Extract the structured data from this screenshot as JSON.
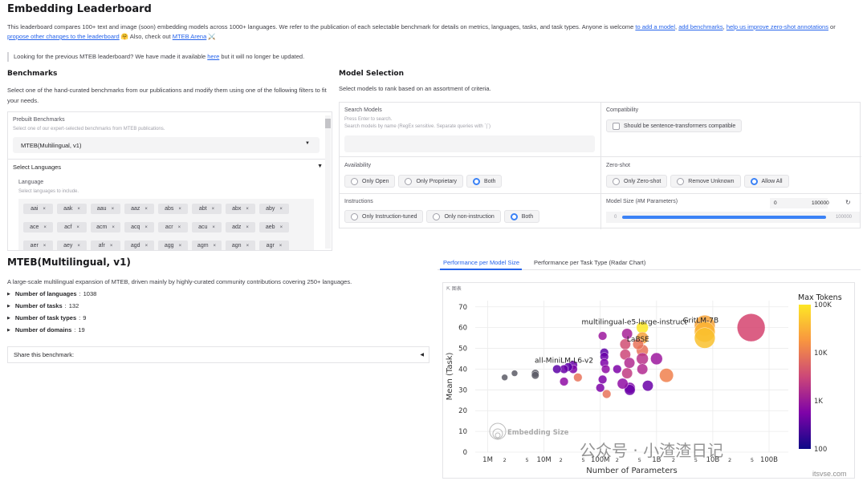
{
  "title": "Embedding Leaderboard",
  "intro": {
    "text1": "This leaderboard compares 100+ text and image (soon) embedding models across 1000+ languages. We refer to the publication of each selectable benchmark for details on metrics, languages, tasks, and task types. Anyone is welcome ",
    "link_add_model": "to add a model",
    "sep1": ", ",
    "link_add_benchmarks": "add benchmarks",
    "sep2": ", ",
    "link_zero_shot": "help us improve zero-shot annotations",
    "sep3": " or ",
    "link_propose": "propose other changes to the leaderboard",
    "text2": " 🤗 Also, check out ",
    "link_arena": "MTEB Arena",
    "text3": " ⚔️"
  },
  "notice": {
    "text1": "Looking for the previous MTEB leaderboard? We have made it available ",
    "link": "here",
    "text2": " but it will no longer be updated."
  },
  "benchmarks": {
    "heading": "Benchmarks",
    "desc": "Select one of the hand-curated benchmarks from our publications and modify them using one of the following filters to fit your needs.",
    "prebuilt_label": "Prebuilt Benchmarks",
    "prebuilt_hint": "Select one of our expert-selected benchmarks from MTEB publications.",
    "prebuilt_value": "MTEB(Multilingual, v1)",
    "select_languages": "Select Languages",
    "language_label": "Language",
    "language_hint": "Select languages to include.",
    "languages": [
      "aai",
      "aak",
      "aau",
      "aaz",
      "abs",
      "abt",
      "abx",
      "aby",
      "ace",
      "acf",
      "acm",
      "acq",
      "acr",
      "acu",
      "adz",
      "aeb",
      "aer",
      "aey",
      "afr",
      "agd",
      "agg",
      "agm",
      "agn",
      "agr"
    ]
  },
  "model_selection": {
    "heading": "Model Selection",
    "desc": "Select models to rank based on an assortment of criteria.",
    "search_label": "Search Models",
    "search_hint1": "Press Enter to search.",
    "search_hint2": "Search models by name (RegEx sensitive. Separate queries with `|`)",
    "compat_label": "Compatibility",
    "compat_option": "Should be sentence-transformers compatible",
    "availability_label": "Availability",
    "availability_options": [
      "Only Open",
      "Only Proprietary",
      "Both"
    ],
    "zero_shot_label": "Zero-shot",
    "zero_shot_options": [
      "Only Zero-shot",
      "Remove Unknown",
      "Allow All"
    ],
    "instructions_label": "Instructions",
    "instructions_options": [
      "Only Instruction-tuned",
      "Only non-instruction",
      "Both"
    ],
    "model_size_label": "Model Size (#M Parameters)",
    "model_size_min": "0",
    "model_size_max": "100000",
    "slider_min": "0",
    "slider_max": "100000"
  },
  "benchmark_info": {
    "title": "MTEB(Multilingual, v1)",
    "desc": "A large-scale multilingual expansion of MTEB, driven mainly by highly-curated community contributions covering 250+ languages.",
    "stats": [
      {
        "label": "Number of languages",
        "value": "1038"
      },
      {
        "label": "Number of tasks",
        "value": "132"
      },
      {
        "label": "Number of task types",
        "value": "9"
      },
      {
        "label": "Number of domains",
        "value": "19"
      }
    ],
    "share": "Share this benchmark:"
  },
  "tabs": [
    "Performance per Model Size",
    "Performance per Task Type (Radar Chart)"
  ],
  "chart_toolbar": "图表",
  "watermark": {
    "text": "公众号 · 小渣渣日记",
    "site": "itsvse.com"
  },
  "chart_data": {
    "type": "scatter",
    "xlabel": "Number of Parameters",
    "ylabel": "Mean (Task)",
    "x_scale": "log",
    "xlim": [
      600000,
      220000000000
    ],
    "ylim": [
      0,
      73
    ],
    "y_ticks": [
      0,
      10,
      20,
      30,
      40,
      50,
      60,
      70
    ],
    "x_ticks": [
      {
        "v": 1000000,
        "label": "1M"
      },
      {
        "v": 2000000,
        "label": "2"
      },
      {
        "v": 5000000,
        "label": "5"
      },
      {
        "v": 10000000,
        "label": "10M"
      },
      {
        "v": 20000000,
        "label": "2"
      },
      {
        "v": 50000000,
        "label": "5"
      },
      {
        "v": 100000000,
        "label": "100M"
      },
      {
        "v": 200000000,
        "label": "2"
      },
      {
        "v": 500000000,
        "label": "5"
      },
      {
        "v": 1000000000,
        "label": "1B"
      },
      {
        "v": 2000000000,
        "label": "2"
      },
      {
        "v": 5000000000,
        "label": "5"
      },
      {
        "v": 10000000000,
        "label": "10B"
      },
      {
        "v": 20000000000,
        "label": "2"
      },
      {
        "v": 50000000000,
        "label": "5"
      },
      {
        "v": 100000000000,
        "label": "100B"
      }
    ],
    "color_scale": {
      "title": "Max Tokens",
      "ticks": [
        "100K",
        "10K",
        "1K",
        "100"
      ],
      "colors": [
        "#fde725",
        "#f89540",
        "#cc4778",
        "#7e03a8",
        "#0d0887"
      ]
    },
    "size_legend": "Embedding Size",
    "annotations": [
      {
        "text": "multilingual-e5-large-instruct",
        "x": 560000000,
        "y": 60.9
      },
      {
        "text": "GritLM-7B",
        "x": 7200000000,
        "y": 60.9
      },
      {
        "text": "LaBSE",
        "x": 471000000,
        "y": 52.1
      },
      {
        "text": "all-MiniLM-L6-v2",
        "x": 22700000,
        "y": 41.9
      }
    ],
    "points": [
      {
        "x": 560000000,
        "y": 60,
        "size": 1024,
        "color": "#fde725"
      },
      {
        "x": 7200000000,
        "y": 61,
        "size": 4096,
        "color": "#f5a23a"
      },
      {
        "x": 7200000000,
        "y": 58,
        "size": 4096,
        "color": "#fbb432"
      },
      {
        "x": 7200000000,
        "y": 55,
        "size": 4096,
        "color": "#f9c12e"
      },
      {
        "x": 48000000000,
        "y": 60,
        "size": 8192,
        "color": "#d5436f"
      },
      {
        "x": 1500000000,
        "y": 37,
        "size": 1536,
        "color": "#f0804d"
      },
      {
        "x": 471000000,
        "y": 52,
        "size": 768,
        "color": "#e8735a"
      },
      {
        "x": 560000000,
        "y": 55,
        "size": 1024,
        "color": "#f6a13d"
      },
      {
        "x": 560000000,
        "y": 49,
        "size": 1024,
        "color": "#e67258"
      },
      {
        "x": 560000000,
        "y": 45,
        "size": 1024,
        "color": "#b83289"
      },
      {
        "x": 278000000,
        "y": 52,
        "size": 768,
        "color": "#d04d73"
      },
      {
        "x": 278000000,
        "y": 47,
        "size": 768,
        "color": "#cc4778"
      },
      {
        "x": 118000000,
        "y": 48,
        "size": 384,
        "color": "#5c01a6"
      },
      {
        "x": 118000000,
        "y": 46,
        "size": 384,
        "color": "#6a00a8"
      },
      {
        "x": 118000000,
        "y": 43,
        "size": 384,
        "color": "#7e03a8"
      },
      {
        "x": 125000000,
        "y": 40,
        "size": 384,
        "color": "#8f0da4"
      },
      {
        "x": 110000000,
        "y": 35,
        "size": 384,
        "color": "#7e03a8"
      },
      {
        "x": 100000000,
        "y": 31,
        "size": 384,
        "color": "#7e03a8"
      },
      {
        "x": 110000000,
        "y": 56,
        "size": 384,
        "color": "#9c179e"
      },
      {
        "x": 300000000,
        "y": 57,
        "size": 768,
        "color": "#a72197"
      },
      {
        "x": 330000000,
        "y": 43,
        "size": 768,
        "color": "#b12a90"
      },
      {
        "x": 300000000,
        "y": 38,
        "size": 768,
        "color": "#c13b82"
      },
      {
        "x": 335000000,
        "y": 31,
        "size": 768,
        "color": "#7e03a8"
      },
      {
        "x": 335000000,
        "y": 30,
        "size": 768,
        "color": "#6a00a8"
      },
      {
        "x": 130000000,
        "y": 28,
        "size": 384,
        "color": "#e8735a"
      },
      {
        "x": 1000000000,
        "y": 45,
        "size": 1024,
        "color": "#9c179e"
      },
      {
        "x": 560000000,
        "y": 40,
        "size": 768,
        "color": "#b12a90"
      },
      {
        "x": 700000000,
        "y": 32,
        "size": 768,
        "color": "#6a00a8"
      },
      {
        "x": 250000000,
        "y": 33,
        "size": 768,
        "color": "#8f0da4"
      },
      {
        "x": 200000000,
        "y": 40,
        "size": 384,
        "color": "#7e03a8"
      },
      {
        "x": 33000000,
        "y": 42,
        "size": 384,
        "color": "#6a00a8"
      },
      {
        "x": 33000000,
        "y": 40,
        "size": 384,
        "color": "#7e03a8"
      },
      {
        "x": 27000000,
        "y": 41,
        "size": 384,
        "color": "#5c01a6"
      },
      {
        "x": 22700000,
        "y": 40,
        "size": 384,
        "color": "#6a00a8"
      },
      {
        "x": 17000000,
        "y": 40,
        "size": 384,
        "color": "#5c01a6"
      },
      {
        "x": 40000000,
        "y": 36,
        "size": 384,
        "color": "#e8735a"
      },
      {
        "x": 22700000,
        "y": 34,
        "size": 384,
        "color": "#8f0da4"
      },
      {
        "x": 7000000,
        "y": 38,
        "size": 256,
        "color": "#5c5c66"
      },
      {
        "x": 7000000,
        "y": 37,
        "size": 256,
        "color": "#5c5c66"
      },
      {
        "x": 3000000,
        "y": 38,
        "size": 128,
        "color": "#5c5c66"
      },
      {
        "x": 2000000,
        "y": 36,
        "size": 128,
        "color": "#5c5c66"
      }
    ]
  }
}
